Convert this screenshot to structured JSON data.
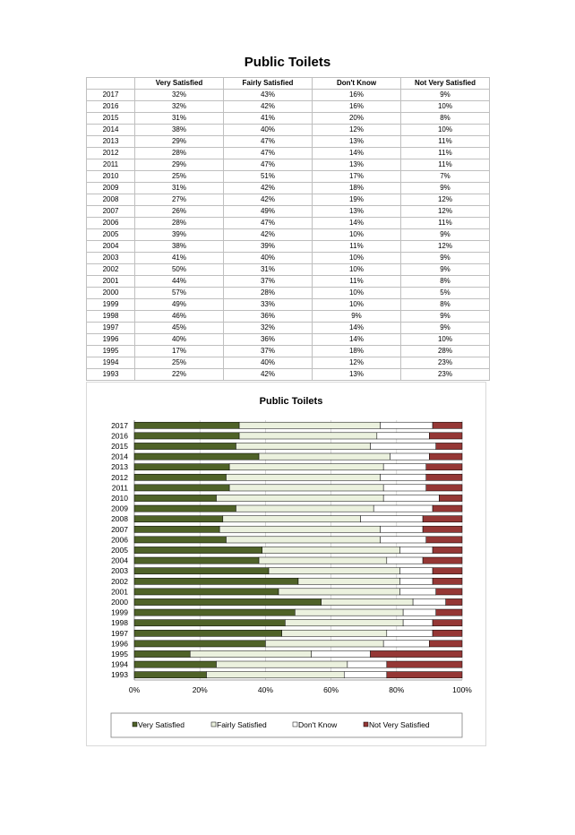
{
  "page_title": "Public Toilets",
  "table": {
    "headers": [
      "",
      "Very Satisfied",
      "Fairly Satisfied",
      "Don't Know",
      "Not Very Satisfied"
    ],
    "rows": [
      [
        "2017",
        "32%",
        "43%",
        "16%",
        "9%"
      ],
      [
        "2016",
        "32%",
        "42%",
        "16%",
        "10%"
      ],
      [
        "2015",
        "31%",
        "41%",
        "20%",
        "8%"
      ],
      [
        "2014",
        "38%",
        "40%",
        "12%",
        "10%"
      ],
      [
        "2013",
        "29%",
        "47%",
        "13%",
        "11%"
      ],
      [
        "2012",
        "28%",
        "47%",
        "14%",
        "11%"
      ],
      [
        "2011",
        "29%",
        "47%",
        "13%",
        "11%"
      ],
      [
        "2010",
        "25%",
        "51%",
        "17%",
        "7%"
      ],
      [
        "2009",
        "31%",
        "42%",
        "18%",
        "9%"
      ],
      [
        "2008",
        "27%",
        "42%",
        "19%",
        "12%"
      ],
      [
        "2007",
        "26%",
        "49%",
        "13%",
        "12%"
      ],
      [
        "2006",
        "28%",
        "47%",
        "14%",
        "11%"
      ],
      [
        "2005",
        "39%",
        "42%",
        "10%",
        "9%"
      ],
      [
        "2004",
        "38%",
        "39%",
        "11%",
        "12%"
      ],
      [
        "2003",
        "41%",
        "40%",
        "10%",
        "9%"
      ],
      [
        "2002",
        "50%",
        "31%",
        "10%",
        "9%"
      ],
      [
        "2001",
        "44%",
        "37%",
        "11%",
        "8%"
      ],
      [
        "2000",
        "57%",
        "28%",
        "10%",
        "5%"
      ],
      [
        "1999",
        "49%",
        "33%",
        "10%",
        "8%"
      ],
      [
        "1998",
        "46%",
        "36%",
        "9%",
        "9%"
      ],
      [
        "1997",
        "45%",
        "32%",
        "14%",
        "9%"
      ],
      [
        "1996",
        "40%",
        "36%",
        "14%",
        "10%"
      ],
      [
        "1995",
        "17%",
        "37%",
        "18%",
        "28%"
      ],
      [
        "1994",
        "25%",
        "40%",
        "12%",
        "23%"
      ],
      [
        "1993",
        "22%",
        "42%",
        "13%",
        "23%"
      ]
    ]
  },
  "chart_data": {
    "type": "bar",
    "orientation": "horizontal",
    "stacked": "percent",
    "title": "Public Toilets",
    "categories": [
      "2017",
      "2016",
      "2015",
      "2014",
      "2013",
      "2012",
      "2011",
      "2010",
      "2009",
      "2008",
      "2007",
      "2006",
      "2005",
      "2004",
      "2003",
      "2002",
      "2001",
      "2000",
      "1999",
      "1998",
      "1997",
      "1996",
      "1995",
      "1994",
      "1993"
    ],
    "series": [
      {
        "name": "Very Satisfied",
        "color": "#4f6228",
        "values": [
          32,
          32,
          31,
          38,
          29,
          28,
          29,
          25,
          31,
          27,
          26,
          28,
          39,
          38,
          41,
          50,
          44,
          57,
          49,
          46,
          45,
          40,
          17,
          25,
          22
        ]
      },
      {
        "name": "Fairly Satisfied",
        "color": "#ebf1de",
        "values": [
          43,
          42,
          41,
          40,
          47,
          47,
          47,
          51,
          42,
          42,
          49,
          47,
          42,
          39,
          40,
          31,
          37,
          28,
          33,
          36,
          32,
          36,
          37,
          40,
          42
        ]
      },
      {
        "name": "Don't Know",
        "color": "#ffffff",
        "values": [
          16,
          16,
          20,
          12,
          13,
          14,
          13,
          17,
          18,
          19,
          13,
          14,
          10,
          11,
          10,
          10,
          11,
          10,
          10,
          9,
          14,
          14,
          18,
          12,
          13
        ]
      },
      {
        "name": "Not Very Satisfied",
        "color": "#953735",
        "values": [
          9,
          10,
          8,
          10,
          11,
          11,
          11,
          7,
          9,
          12,
          12,
          11,
          9,
          12,
          9,
          9,
          8,
          5,
          8,
          9,
          9,
          10,
          28,
          23,
          23
        ]
      }
    ],
    "x_ticks": [
      "0%",
      "20%",
      "40%",
      "60%",
      "80%",
      "100%"
    ],
    "xlim": [
      0,
      100
    ],
    "grid": true,
    "legend_position": "bottom"
  }
}
